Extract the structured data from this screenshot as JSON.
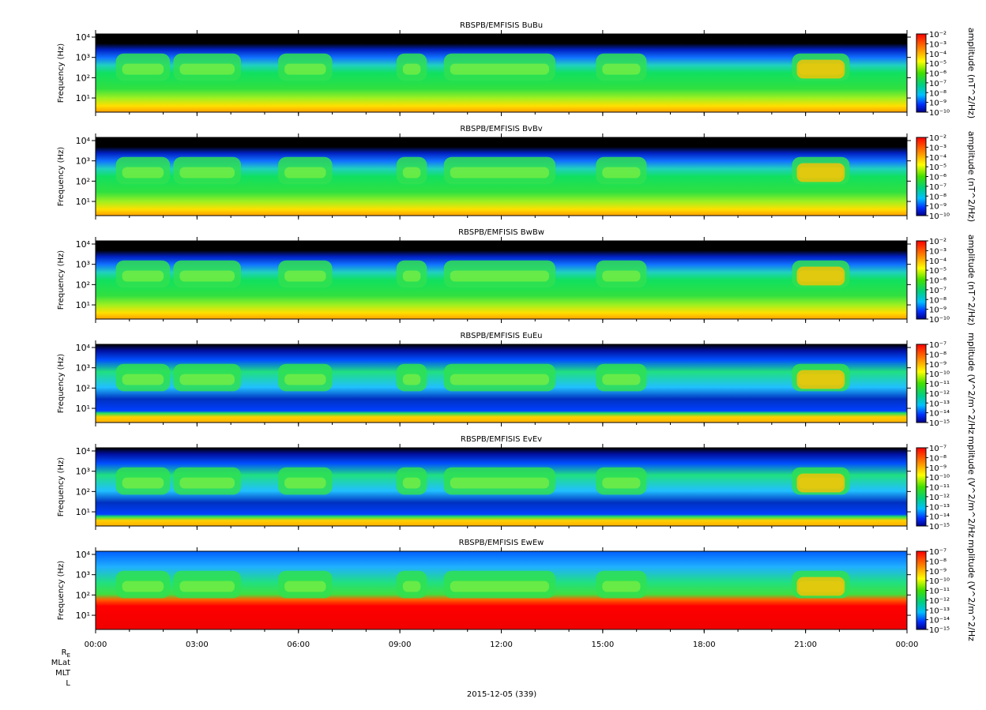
{
  "chart_data": [
    {
      "type": "spectrogram",
      "title": "RBSPB/EMFISIS  BuBu",
      "ylabel": "Frequency (Hz)",
      "yscale": "log",
      "ylim": [
        2,
        14300
      ],
      "yticks": [
        {
          "value": 10,
          "label": "10¹"
        },
        {
          "value": 100,
          "label": "10²"
        },
        {
          "value": 1000,
          "label": "10³"
        },
        {
          "value": 10000,
          "label": "10⁴"
        }
      ],
      "colorbar_label": "amplitude (nT^2/Hz)",
      "colorbar_scale": "log",
      "clim": [
        1e-10,
        0.01
      ],
      "cticks": [
        {
          "value": 0.01,
          "label": "10⁻²"
        },
        {
          "value": 0.001,
          "label": "10⁻³"
        },
        {
          "value": 0.0001,
          "label": "10⁻⁴"
        },
        {
          "value": 1e-05,
          "label": "10⁻⁵"
        },
        {
          "value": 1e-06,
          "label": "10⁻⁶"
        },
        {
          "value": 1e-07,
          "label": "10⁻⁷"
        },
        {
          "value": 1e-08,
          "label": "10⁻⁸"
        },
        {
          "value": 1e-09,
          "label": "10⁻⁹"
        },
        {
          "value": 1e-10,
          "label": "10⁻¹⁰"
        }
      ],
      "field": "B"
    },
    {
      "type": "spectrogram",
      "title": "RBSPB/EMFISIS  BvBv",
      "ylabel": "Frequency (Hz)",
      "yscale": "log",
      "ylim": [
        2,
        14300
      ],
      "yticks": [
        {
          "value": 10,
          "label": "10¹"
        },
        {
          "value": 100,
          "label": "10²"
        },
        {
          "value": 1000,
          "label": "10³"
        },
        {
          "value": 10000,
          "label": "10⁴"
        }
      ],
      "colorbar_label": "amplitude (nT^2/Hz)",
      "colorbar_scale": "log",
      "clim": [
        1e-10,
        0.01
      ],
      "cticks": [
        {
          "value": 0.01,
          "label": "10⁻²"
        },
        {
          "value": 0.001,
          "label": "10⁻³"
        },
        {
          "value": 0.0001,
          "label": "10⁻⁴"
        },
        {
          "value": 1e-05,
          "label": "10⁻⁵"
        },
        {
          "value": 1e-06,
          "label": "10⁻⁶"
        },
        {
          "value": 1e-07,
          "label": "10⁻⁷"
        },
        {
          "value": 1e-08,
          "label": "10⁻⁸"
        },
        {
          "value": 1e-09,
          "label": "10⁻⁹"
        },
        {
          "value": 1e-10,
          "label": "10⁻¹⁰"
        }
      ],
      "field": "B"
    },
    {
      "type": "spectrogram",
      "title": "RBSPB/EMFISIS  BwBw",
      "ylabel": "Frequency (Hz)",
      "yscale": "log",
      "ylim": [
        2,
        14300
      ],
      "yticks": [
        {
          "value": 10,
          "label": "10¹"
        },
        {
          "value": 100,
          "label": "10²"
        },
        {
          "value": 1000,
          "label": "10³"
        },
        {
          "value": 10000,
          "label": "10⁴"
        }
      ],
      "colorbar_label": "amplitude (nT^2/Hz)",
      "colorbar_scale": "log",
      "clim": [
        1e-10,
        0.01
      ],
      "cticks": [
        {
          "value": 0.01,
          "label": "10⁻²"
        },
        {
          "value": 0.001,
          "label": "10⁻³"
        },
        {
          "value": 0.0001,
          "label": "10⁻⁴"
        },
        {
          "value": 1e-05,
          "label": "10⁻⁵"
        },
        {
          "value": 1e-06,
          "label": "10⁻⁶"
        },
        {
          "value": 1e-07,
          "label": "10⁻⁷"
        },
        {
          "value": 1e-08,
          "label": "10⁻⁸"
        },
        {
          "value": 1e-09,
          "label": "10⁻⁹"
        },
        {
          "value": 1e-10,
          "label": "10⁻¹⁰"
        }
      ],
      "field": "B"
    },
    {
      "type": "spectrogram",
      "title": "RBSPB/EMFISIS  EuEu",
      "ylabel": "Frequency (Hz)",
      "yscale": "log",
      "ylim": [
        2,
        14300
      ],
      "yticks": [
        {
          "value": 10,
          "label": "10¹"
        },
        {
          "value": 100,
          "label": "10²"
        },
        {
          "value": 1000,
          "label": "10³"
        },
        {
          "value": 10000,
          "label": "10⁴"
        }
      ],
      "colorbar_label": "mplitude (V^2/m^2/Hz",
      "colorbar_scale": "log",
      "clim": [
        1e-15,
        1e-07
      ],
      "cticks": [
        {
          "value": 1e-07,
          "label": "10⁻⁷"
        },
        {
          "value": 1e-08,
          "label": "10⁻⁸"
        },
        {
          "value": 1e-09,
          "label": "10⁻⁹"
        },
        {
          "value": 1e-10,
          "label": "10⁻¹⁰"
        },
        {
          "value": 1e-11,
          "label": "10⁻¹¹"
        },
        {
          "value": 1e-12,
          "label": "10⁻¹²"
        },
        {
          "value": 1e-13,
          "label": "10⁻¹³"
        },
        {
          "value": 1e-14,
          "label": "10⁻¹⁴"
        },
        {
          "value": 1e-15,
          "label": "10⁻¹⁵"
        }
      ],
      "field": "E"
    },
    {
      "type": "spectrogram",
      "title": "RBSPB/EMFISIS  EvEv",
      "ylabel": "Frequency (Hz)",
      "yscale": "log",
      "ylim": [
        2,
        14300
      ],
      "yticks": [
        {
          "value": 10,
          "label": "10¹"
        },
        {
          "value": 100,
          "label": "10²"
        },
        {
          "value": 1000,
          "label": "10³"
        },
        {
          "value": 10000,
          "label": "10⁴"
        }
      ],
      "colorbar_label": "mplitude (V^2/m^2/Hz",
      "colorbar_scale": "log",
      "clim": [
        1e-15,
        1e-07
      ],
      "cticks": [
        {
          "value": 1e-07,
          "label": "10⁻⁷"
        },
        {
          "value": 1e-08,
          "label": "10⁻⁸"
        },
        {
          "value": 1e-09,
          "label": "10⁻⁹"
        },
        {
          "value": 1e-10,
          "label": "10⁻¹⁰"
        },
        {
          "value": 1e-11,
          "label": "10⁻¹¹"
        },
        {
          "value": 1e-12,
          "label": "10⁻¹²"
        },
        {
          "value": 1e-13,
          "label": "10⁻¹³"
        },
        {
          "value": 1e-14,
          "label": "10⁻¹⁴"
        },
        {
          "value": 1e-15,
          "label": "10⁻¹⁵"
        }
      ],
      "field": "E"
    },
    {
      "type": "spectrogram",
      "title": "RBSPB/EMFISIS  EwEw",
      "ylabel": "Frequency (Hz)",
      "yscale": "log",
      "ylim": [
        2,
        14300
      ],
      "yticks": [
        {
          "value": 10,
          "label": "10¹"
        },
        {
          "value": 100,
          "label": "10²"
        },
        {
          "value": 1000,
          "label": "10³"
        },
        {
          "value": 10000,
          "label": "10⁴"
        }
      ],
      "colorbar_label": "mplitude (V^2/m^2/Hz",
      "colorbar_scale": "log",
      "clim": [
        1e-15,
        1e-07
      ],
      "cticks": [
        {
          "value": 1e-07,
          "label": "10⁻⁷"
        },
        {
          "value": 1e-08,
          "label": "10⁻⁸"
        },
        {
          "value": 1e-09,
          "label": "10⁻⁹"
        },
        {
          "value": 1e-10,
          "label": "10⁻¹⁰"
        },
        {
          "value": 1e-11,
          "label": "10⁻¹¹"
        },
        {
          "value": 1e-12,
          "label": "10⁻¹²"
        },
        {
          "value": 1e-13,
          "label": "10⁻¹³"
        },
        {
          "value": 1e-14,
          "label": "10⁻¹⁴"
        },
        {
          "value": 1e-15,
          "label": "10⁻¹⁵"
        }
      ],
      "field": "Ew"
    }
  ],
  "x_axis": {
    "xlim": [
      0,
      24
    ],
    "xticks": [
      {
        "value": 0,
        "label": "00:00"
      },
      {
        "value": 3,
        "label": "03:00"
      },
      {
        "value": 6,
        "label": "06:00"
      },
      {
        "value": 9,
        "label": "09:00"
      },
      {
        "value": 12,
        "label": "12:00"
      },
      {
        "value": 15,
        "label": "15:00"
      },
      {
        "value": 18,
        "label": "18:00"
      },
      {
        "value": 21,
        "label": "21:00"
      },
      {
        "value": 24,
        "label": "00:00"
      }
    ]
  },
  "position_labels": [
    {
      "base": "R",
      "sub": "E"
    },
    {
      "base": "MLat"
    },
    {
      "base": "MLT"
    },
    {
      "base": "L"
    }
  ],
  "footer": "2015-12-05 (339)"
}
